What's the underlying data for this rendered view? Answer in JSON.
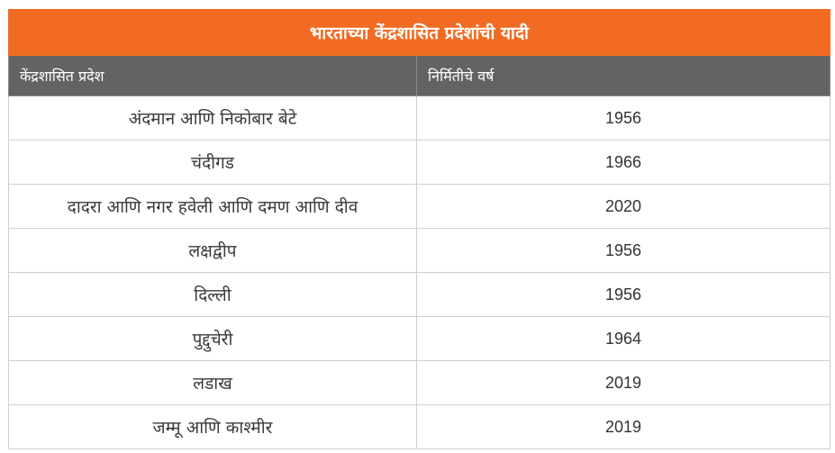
{
  "table": {
    "title": "भारताच्या केंद्रशासित प्रदेशांची यादी",
    "headers": [
      "केंद्रशासित प्रदेश",
      "निर्मितीचे वर्ष"
    ],
    "rows": [
      [
        "अंदमान आणि निकोबार बेटे",
        "1956"
      ],
      [
        "चंदीगड",
        "1966"
      ],
      [
        "दादरा आणि नगर हवेली आणि दमण आणि दीव",
        "2020"
      ],
      [
        "लक्षद्वीप",
        "1956"
      ],
      [
        "दिल्ली",
        "1956"
      ],
      [
        "पुद्दुचेरी",
        "1964"
      ],
      [
        "लडाख",
        "2019"
      ],
      [
        "जम्मू आणि काश्मीर",
        "2019"
      ]
    ]
  },
  "colors": {
    "title_bg": "#f26b22",
    "header_bg": "#636363",
    "border": "#cfcfcf"
  }
}
